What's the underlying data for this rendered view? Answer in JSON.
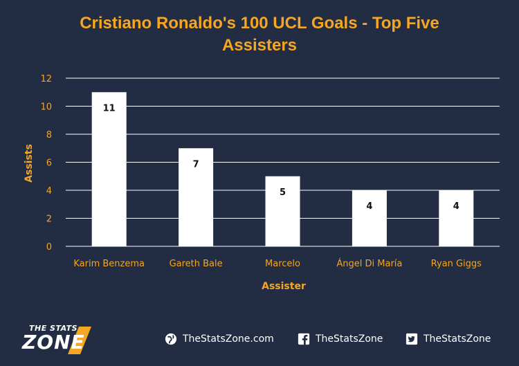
{
  "chart_data": {
    "type": "bar",
    "title": "Cristiano Ronaldo's 100 UCL Goals - Top Five Assisters",
    "xlabel": "Assister",
    "ylabel": "Assists",
    "categories": [
      "Karim Benzema",
      "Gareth Bale",
      "Marcelo",
      "Ángel Di María",
      "Ryan Giggs"
    ],
    "values": [
      11,
      7,
      5,
      4,
      4
    ],
    "data_labels": [
      "11",
      "7",
      "5",
      "4",
      "4"
    ],
    "ylim": [
      0,
      12
    ],
    "yticks": [
      "0",
      "2",
      "4",
      "6",
      "8",
      "10",
      "12"
    ],
    "grid": true,
    "legend": "none",
    "colors": {
      "background": "#222d44",
      "bar": "#ffffff",
      "text": "#f5a623",
      "grid": "#ffffff"
    }
  },
  "footer": {
    "logo_top": "THE STATS",
    "logo_main": "ZONE",
    "website": "TheStatsZone.com",
    "facebook": "TheStatsZone",
    "twitter": "TheStatsZone",
    "icons": [
      "globe-icon",
      "facebook-icon",
      "twitter-icon"
    ]
  }
}
